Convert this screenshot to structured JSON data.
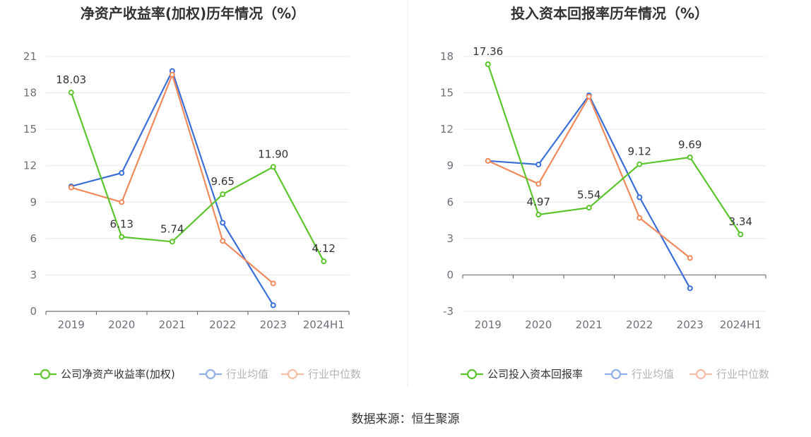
{
  "source": "数据来源：恒生聚源",
  "legend_labels": {
    "industry_avg": "行业均值",
    "industry_median": "行业中位数"
  },
  "colors": {
    "company": "#5cc42d",
    "industry_avg": "#3b6fd8",
    "industry_median": "#f08a5d",
    "grid": "#e6e8f0",
    "axis": "#6e7079",
    "divider": "#eeeeee"
  },
  "chart_data": [
    {
      "type": "line",
      "title": "净资产收益率(加权)历年情况（%）",
      "categories": [
        "2019",
        "2020",
        "2021",
        "2022",
        "2023",
        "2024H1"
      ],
      "yticks": [
        "0",
        "3",
        "6",
        "9",
        "12",
        "15",
        "18",
        "21"
      ],
      "ylim": [
        0,
        21
      ],
      "grid": true,
      "legend_position": "bottom",
      "series": [
        {
          "name": "公司净资产收益率(加权)",
          "key": "company",
          "values": [
            18.03,
            6.13,
            5.74,
            9.65,
            11.9,
            4.12
          ],
          "labels": [
            "18.03",
            "6.13",
            "5.74",
            "9.65",
            "11.90",
            "4.12"
          ]
        },
        {
          "name": "行业均值",
          "key": "industry_avg",
          "values": [
            10.3,
            11.4,
            19.8,
            7.3,
            0.5,
            null
          ]
        },
        {
          "name": "行业中位数",
          "key": "industry_median",
          "values": [
            10.2,
            9.0,
            19.5,
            5.8,
            2.3,
            null
          ]
        }
      ]
    },
    {
      "type": "line",
      "title": "投入资本回报率历年情况（%）",
      "categories": [
        "2019",
        "2020",
        "2021",
        "2022",
        "2023",
        "2024H1"
      ],
      "yticks": [
        "-3",
        "0",
        "3",
        "6",
        "9",
        "12",
        "15",
        "18"
      ],
      "ylim": [
        -3,
        18
      ],
      "grid": true,
      "legend_position": "bottom",
      "series": [
        {
          "name": "公司投入资本回报率",
          "key": "company",
          "values": [
            17.36,
            4.97,
            5.54,
            9.12,
            9.69,
            3.34
          ],
          "labels": [
            "17.36",
            "4.97",
            "5.54",
            "9.12",
            "9.69",
            "3.34"
          ]
        },
        {
          "name": "行业均值",
          "key": "industry_avg",
          "values": [
            9.4,
            9.1,
            14.8,
            6.4,
            -1.1,
            null
          ]
        },
        {
          "name": "行业中位数",
          "key": "industry_median",
          "values": [
            9.4,
            7.5,
            14.7,
            4.7,
            1.4,
            null
          ]
        }
      ]
    }
  ]
}
